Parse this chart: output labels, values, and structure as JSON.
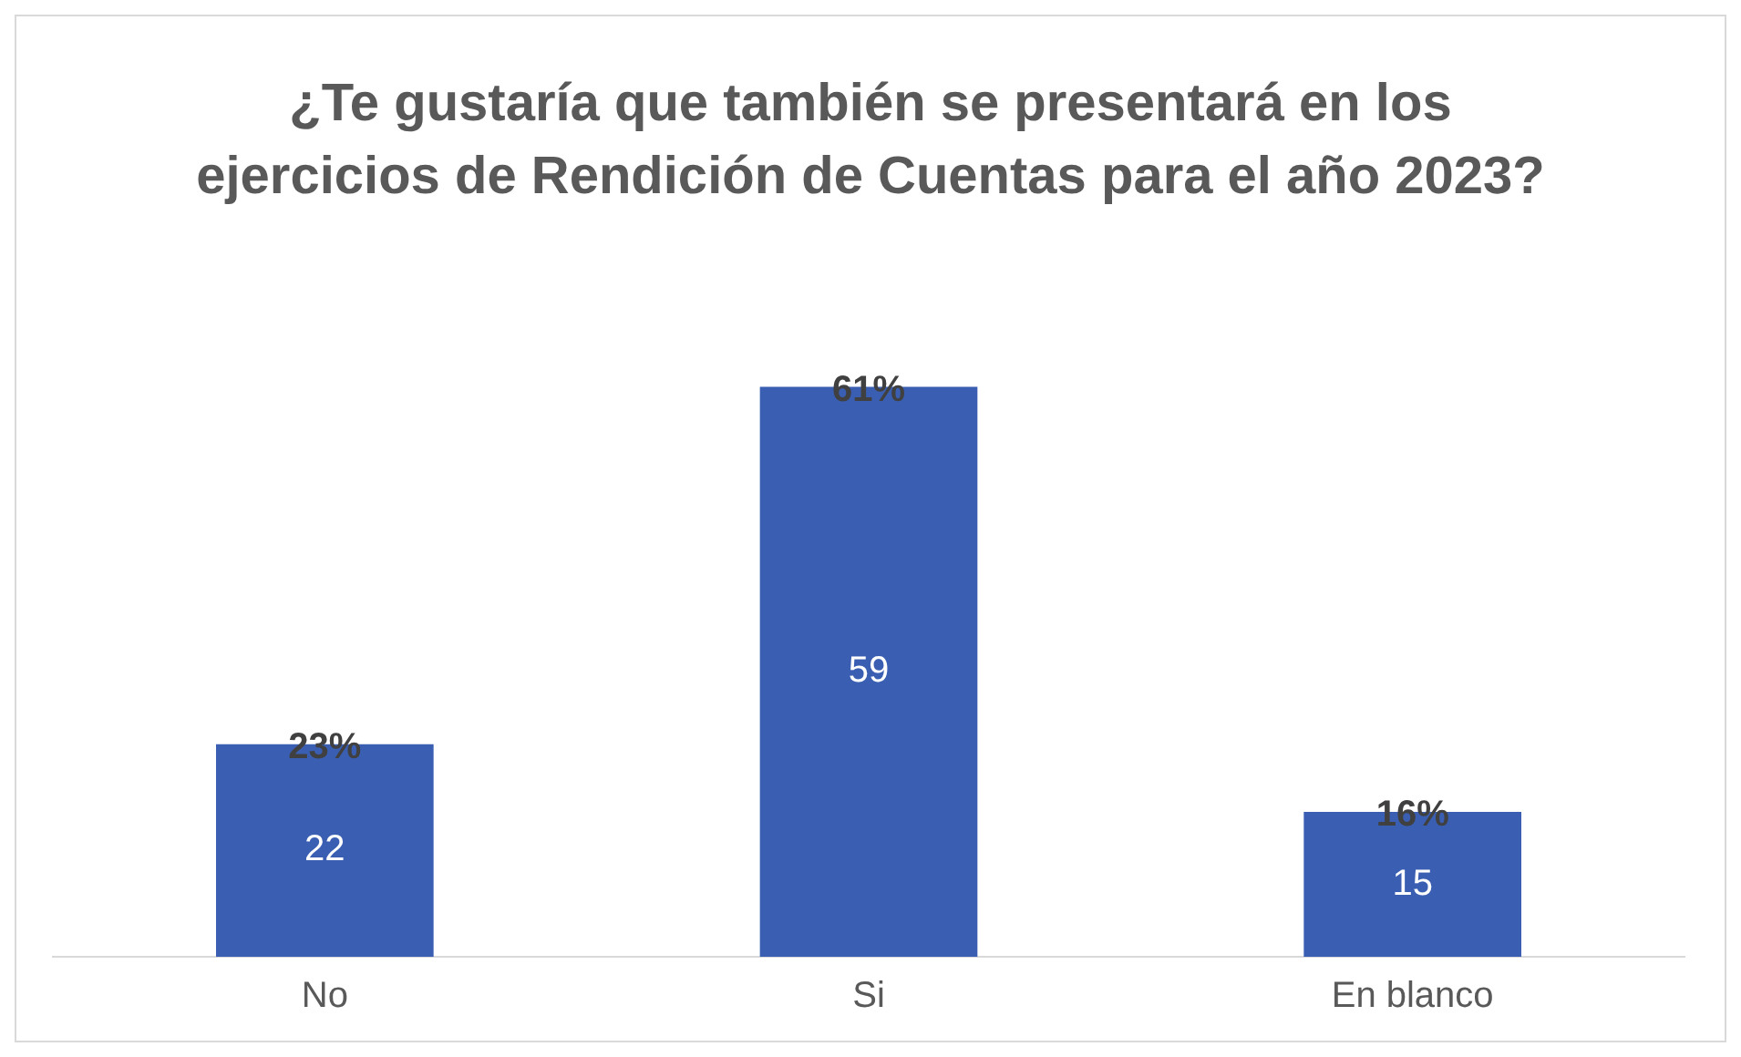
{
  "chart_data": {
    "type": "bar",
    "title": "¿Te gustaría que también se presentará en los ejercicios de Rendición de Cuentas para el año 2023?",
    "categories": [
      "No",
      "Si",
      "En blanco"
    ],
    "values": [
      22,
      59,
      15
    ],
    "color": "#3a5fb2",
    "data_labels": true,
    "annotations": [
      {
        "text": "23%",
        "x": "No",
        "y": 22
      },
      {
        "text": "61%",
        "x": "Si",
        "y": 59
      },
      {
        "text": "16%",
        "x": "En blanco",
        "y": 15
      }
    ],
    "grid": false,
    "legend": false,
    "tick_labels": "x"
  }
}
